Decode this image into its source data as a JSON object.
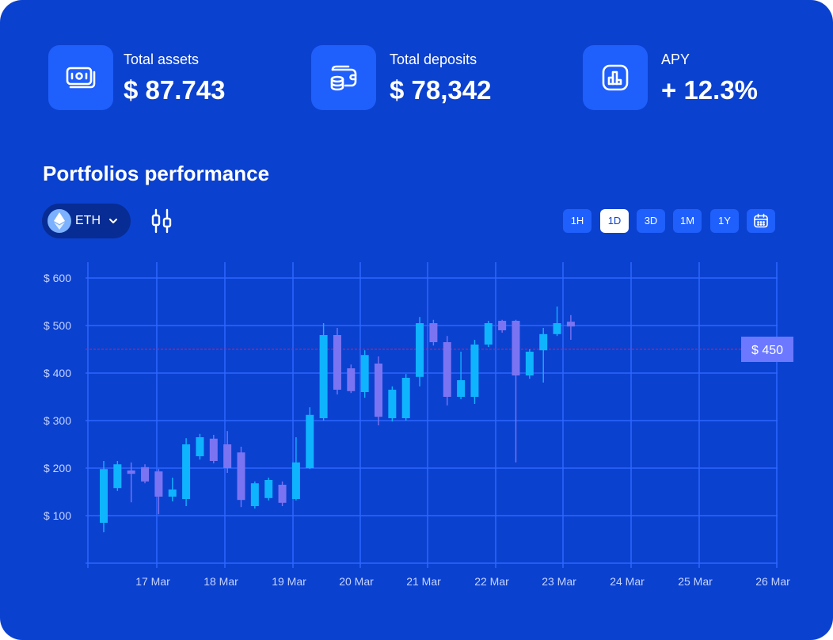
{
  "stats": [
    {
      "label": "Total assets",
      "value": "$ 87.743",
      "icon": "cash-icon"
    },
    {
      "label": "Total deposits",
      "value": "$ 78,342",
      "icon": "wallet-coins-icon"
    },
    {
      "label": "APY",
      "value": "+ 12.3%",
      "icon": "bar-chart-icon"
    }
  ],
  "section_title": "Portfolios performance",
  "asset_selector": {
    "label": "ETH",
    "icon": "ethereum-icon"
  },
  "chart_mode_icon": "candlestick-icon",
  "timeframes": {
    "items": [
      "1H",
      "1D",
      "3D",
      "1M",
      "1Y"
    ],
    "active": "1D",
    "calendar_icon": "calendar-icon"
  },
  "colors": {
    "background": "#0b41cf",
    "bullish": "#0fb4ff",
    "bearish": "#7b74f2",
    "current_price_line": "#c0227c"
  },
  "chart_data": {
    "type": "candlestick",
    "title": "",
    "xlabel": "",
    "ylabel": "",
    "ylim": [
      0,
      600
    ],
    "yticks": [
      100,
      200,
      300,
      400,
      500,
      600
    ],
    "ytick_labels": [
      "$ 100",
      "$ 200",
      "$ 300",
      "$ 400",
      "$ 500",
      "$ 600"
    ],
    "x_labels": [
      "17 Mar",
      "18 Mar",
      "19 Mar",
      "20 Mar",
      "21 Mar",
      "22 Mar",
      "23 Mar",
      "24 Mar",
      "25 Mar",
      "26 Mar"
    ],
    "current_price": 450,
    "current_price_label": "$ 450",
    "grid": true,
    "candles": [
      {
        "o": 85,
        "h": 215,
        "l": 65,
        "c": 198
      },
      {
        "o": 158,
        "h": 215,
        "l": 152,
        "c": 208
      },
      {
        "o": 195,
        "h": 212,
        "l": 128,
        "c": 188
      },
      {
        "o": 202,
        "h": 208,
        "l": 168,
        "c": 172
      },
      {
        "o": 193,
        "h": 198,
        "l": 103,
        "c": 140
      },
      {
        "o": 140,
        "h": 180,
        "l": 130,
        "c": 155
      },
      {
        "o": 135,
        "h": 263,
        "l": 120,
        "c": 250
      },
      {
        "o": 225,
        "h": 272,
        "l": 218,
        "c": 265
      },
      {
        "o": 262,
        "h": 270,
        "l": 210,
        "c": 215
      },
      {
        "o": 250,
        "h": 278,
        "l": 190,
        "c": 200
      },
      {
        "o": 233,
        "h": 245,
        "l": 118,
        "c": 133
      },
      {
        "o": 120,
        "h": 172,
        "l": 115,
        "c": 168
      },
      {
        "o": 137,
        "h": 180,
        "l": 132,
        "c": 175
      },
      {
        "o": 165,
        "h": 172,
        "l": 120,
        "c": 127
      },
      {
        "o": 135,
        "h": 265,
        "l": 132,
        "c": 212
      },
      {
        "o": 200,
        "h": 328,
        "l": 198,
        "c": 312
      },
      {
        "o": 305,
        "h": 505,
        "l": 300,
        "c": 480
      },
      {
        "o": 480,
        "h": 495,
        "l": 355,
        "c": 365
      },
      {
        "o": 410,
        "h": 418,
        "l": 358,
        "c": 362
      },
      {
        "o": 360,
        "h": 448,
        "l": 348,
        "c": 438
      },
      {
        "o": 420,
        "h": 435,
        "l": 290,
        "c": 308
      },
      {
        "o": 305,
        "h": 372,
        "l": 298,
        "c": 365
      },
      {
        "o": 305,
        "h": 398,
        "l": 300,
        "c": 390
      },
      {
        "o": 392,
        "h": 518,
        "l": 372,
        "c": 505
      },
      {
        "o": 505,
        "h": 512,
        "l": 458,
        "c": 465
      },
      {
        "o": 465,
        "h": 478,
        "l": 332,
        "c": 350
      },
      {
        "o": 350,
        "h": 445,
        "l": 345,
        "c": 385
      },
      {
        "o": 350,
        "h": 470,
        "l": 335,
        "c": 460
      },
      {
        "o": 460,
        "h": 510,
        "l": 455,
        "c": 505
      },
      {
        "o": 510,
        "h": 512,
        "l": 485,
        "c": 490
      },
      {
        "o": 510,
        "h": 512,
        "l": 212,
        "c": 395
      },
      {
        "o": 395,
        "h": 450,
        "l": 388,
        "c": 445
      },
      {
        "o": 448,
        "h": 495,
        "l": 380,
        "c": 482
      },
      {
        "o": 482,
        "h": 540,
        "l": 478,
        "c": 505
      },
      {
        "o": 508,
        "h": 522,
        "l": 470,
        "c": 498
      }
    ]
  }
}
